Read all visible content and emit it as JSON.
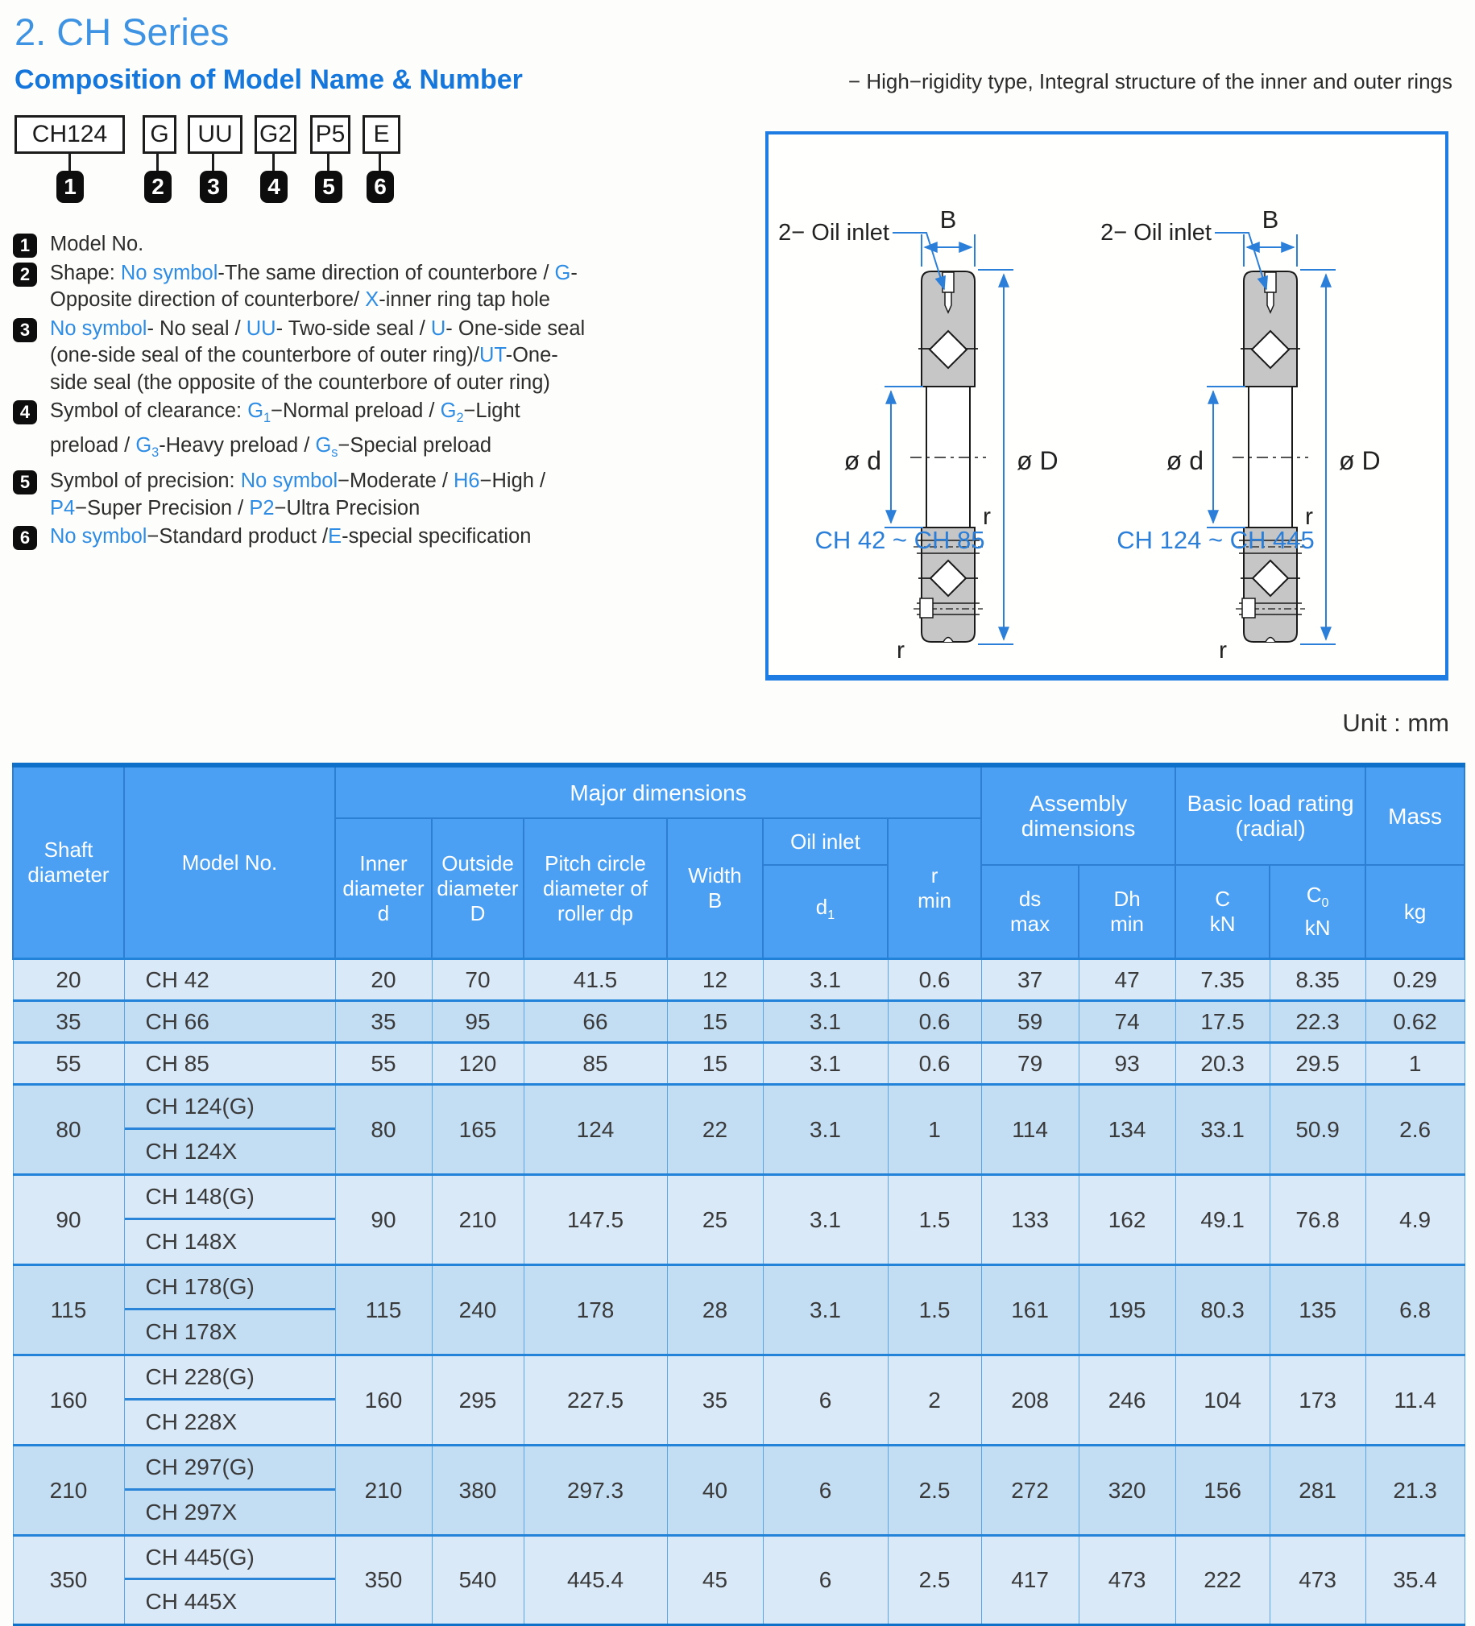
{
  "page": {
    "title": "2. CH Series",
    "subtitle": "Composition of Model Name & Number",
    "note": "− High−rigidity type, Integral structure of the inner and outer rings",
    "unit_label": "Unit : mm"
  },
  "colors": {
    "title_blue": "#3f93e3",
    "subtitle_blue": "#1577dc",
    "accent_blue": "#2e8ce4",
    "diagram_blue": "#2b7fd8",
    "table_header_bg": "#4ba0f3",
    "table_row_light": "#d9e9f8",
    "table_row_dark": "#c3ddf3",
    "table_line_blue": "#2383d9",
    "bearing_gray": "#c6c6c6"
  },
  "model_code": {
    "boxes": [
      {
        "label": "CH124",
        "num": "1"
      },
      {
        "label": "G",
        "num": "2"
      },
      {
        "label": "UU",
        "num": "3"
      },
      {
        "label": "G2",
        "num": "4"
      },
      {
        "label": "P5",
        "num": "5"
      },
      {
        "label": "E",
        "num": "6"
      }
    ],
    "legend": [
      {
        "num": "1",
        "segments": [
          {
            "t": "Model No.",
            "c": "k"
          }
        ]
      },
      {
        "num": "2",
        "segments": [
          {
            "t": "Shape: ",
            "c": "k"
          },
          {
            "t": "No symbol",
            "c": "b"
          },
          {
            "t": "-The same direction of counterbore / ",
            "c": "k"
          },
          {
            "t": "G",
            "c": "b"
          },
          {
            "t": "-Opposite direction of counterbore/ ",
            "c": "k"
          },
          {
            "t": "X",
            "c": "b"
          },
          {
            "t": "-inner ring tap hole",
            "c": "k"
          }
        ]
      },
      {
        "num": "3",
        "segments": [
          {
            "t": "No symbol",
            "c": "b"
          },
          {
            "t": "- No seal / ",
            "c": "k"
          },
          {
            "t": "UU",
            "c": "b"
          },
          {
            "t": "- Two-side seal / ",
            "c": "k"
          },
          {
            "t": "U",
            "c": "b"
          },
          {
            "t": "- One-side seal (one-side seal of the counterbore of outer ring)/",
            "c": "k"
          },
          {
            "t": "UT",
            "c": "b"
          },
          {
            "t": "-One-side seal (the opposite of the counterbore of outer ring)",
            "c": "k"
          }
        ]
      },
      {
        "num": "4",
        "segments": [
          {
            "t": "Symbol of clearance: ",
            "c": "k"
          },
          {
            "t": "G",
            "c": "b"
          },
          {
            "t": "1",
            "c": "b",
            "sub": true
          },
          {
            "t": "−Normal preload / ",
            "c": "k"
          },
          {
            "t": "G",
            "c": "b"
          },
          {
            "t": "2",
            "c": "b",
            "sub": true
          },
          {
            "t": "−Light preload / ",
            "c": "k"
          },
          {
            "t": "G",
            "c": "b"
          },
          {
            "t": "3",
            "c": "b",
            "sub": true
          },
          {
            "t": "-Heavy preload / ",
            "c": "k"
          },
          {
            "t": "G",
            "c": "b"
          },
          {
            "t": "s",
            "c": "b",
            "sub": true
          },
          {
            "t": "−Special preload",
            "c": "k"
          }
        ]
      },
      {
        "num": "5",
        "segments": [
          {
            "t": "Symbol of precision: ",
            "c": "k"
          },
          {
            "t": "No symbol",
            "c": "b"
          },
          {
            "t": "−Moderate / ",
            "c": "k"
          },
          {
            "t": "H6",
            "c": "b"
          },
          {
            "t": "−High  / ",
            "c": "k"
          },
          {
            "t": "P4",
            "c": "b"
          },
          {
            "t": "−Super Precision / ",
            "c": "k"
          },
          {
            "t": "P2",
            "c": "b"
          },
          {
            "t": "−Ultra Precision",
            "c": "k"
          }
        ]
      },
      {
        "num": "6",
        "segments": [
          {
            "t": "No symbol",
            "c": "b"
          },
          {
            "t": "−Standard product /",
            "c": "k"
          },
          {
            "t": "E",
            "c": "b"
          },
          {
            "t": "-special specification",
            "c": "k"
          }
        ]
      }
    ]
  },
  "diagram": {
    "oil_inlet_label": "2− Oil inlet",
    "width_label": "B",
    "bore_label": "ø d",
    "outer_label": "ø D",
    "r_label": "r",
    "left_range": "CH 42 ~ CH 85",
    "right_range": "CH 124 ~ CH 445"
  },
  "table": {
    "header": {
      "shaft": "Shaft\ndiameter",
      "model": "Model No.",
      "major": "Major dimensions",
      "inner": "Inner\ndiameter\nd",
      "outside": "Outside\ndiameter\nD",
      "pitch": "Pitch circle\ndiameter of\nroller dp",
      "width": "Width\nB",
      "oil": "Oil inlet",
      "d1_base": "d",
      "d1_sub": "1",
      "rmin": "r\nmin",
      "assembly": "Assembly\ndimensions",
      "ds": "ds\nmax",
      "dh": "Dh\nmin",
      "load": "Basic load rating\n(radial)",
      "c": "C\nkN",
      "c0_base": "C",
      "c0_sub": "0",
      "c0_unit": "kN",
      "mass": "Mass",
      "kg": "kg"
    },
    "rows": [
      {
        "shaft": "20",
        "models": [
          "CH 42"
        ],
        "values": [
          "20",
          "70",
          "41.5",
          "12",
          "3.1",
          "0.6",
          "37",
          "47",
          "7.35",
          "8.35",
          "0.29"
        ]
      },
      {
        "shaft": "35",
        "models": [
          "CH 66"
        ],
        "values": [
          "35",
          "95",
          "66",
          "15",
          "3.1",
          "0.6",
          "59",
          "74",
          "17.5",
          "22.3",
          "0.62"
        ]
      },
      {
        "shaft": "55",
        "models": [
          "CH 85"
        ],
        "values": [
          "55",
          "120",
          "85",
          "15",
          "3.1",
          "0.6",
          "79",
          "93",
          "20.3",
          "29.5",
          "1"
        ]
      },
      {
        "shaft": "80",
        "models": [
          "CH 124(G)",
          "CH 124X"
        ],
        "values": [
          "80",
          "165",
          "124",
          "22",
          "3.1",
          "1",
          "114",
          "134",
          "33.1",
          "50.9",
          "2.6"
        ]
      },
      {
        "shaft": "90",
        "models": [
          "CH 148(G)",
          "CH 148X"
        ],
        "values": [
          "90",
          "210",
          "147.5",
          "25",
          "3.1",
          "1.5",
          "133",
          "162",
          "49.1",
          "76.8",
          "4.9"
        ]
      },
      {
        "shaft": "115",
        "models": [
          "CH 178(G)",
          "CH 178X"
        ],
        "values": [
          "115",
          "240",
          "178",
          "28",
          "3.1",
          "1.5",
          "161",
          "195",
          "80.3",
          "135",
          "6.8"
        ]
      },
      {
        "shaft": "160",
        "models": [
          "CH 228(G)",
          "CH 228X"
        ],
        "values": [
          "160",
          "295",
          "227.5",
          "35",
          "6",
          "2",
          "208",
          "246",
          "104",
          "173",
          "11.4"
        ]
      },
      {
        "shaft": "210",
        "models": [
          "CH 297(G)",
          "CH 297X"
        ],
        "values": [
          "210",
          "380",
          "297.3",
          "40",
          "6",
          "2.5",
          "272",
          "320",
          "156",
          "281",
          "21.3"
        ]
      },
      {
        "shaft": "350",
        "models": [
          "CH 445(G)",
          "CH 445X"
        ],
        "values": [
          "350",
          "540",
          "445.4",
          "45",
          "6",
          "2.5",
          "417",
          "473",
          "222",
          "473",
          "35.4"
        ]
      }
    ]
  }
}
